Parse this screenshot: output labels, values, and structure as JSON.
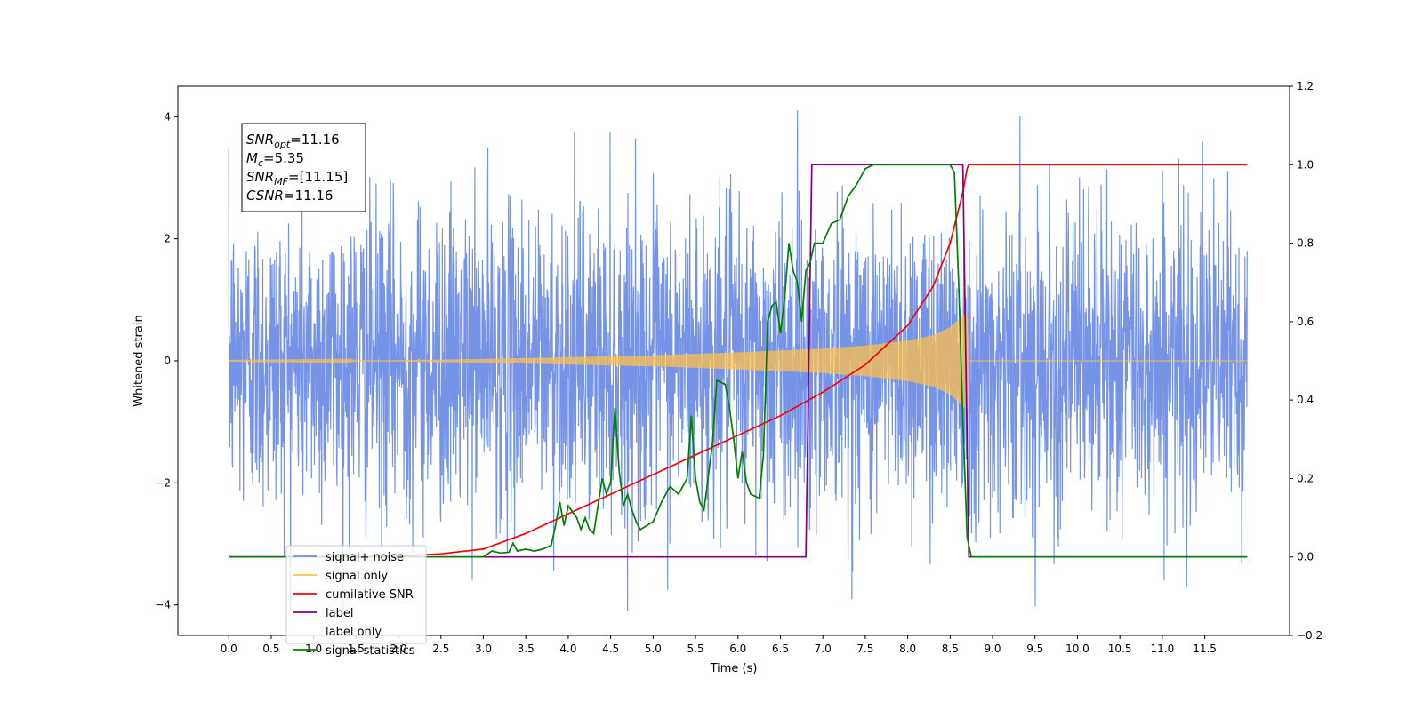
{
  "chart_data": {
    "type": "line",
    "title": "",
    "xlabel": "Time (s)",
    "ylabel": "Whitened strain",
    "ylabel_right": "",
    "xlim": [
      -0.6,
      12.5
    ],
    "ylim": [
      -4.5,
      4.5
    ],
    "ylim_right": [
      -0.2,
      1.2
    ],
    "x_ticks": [
      "0.0",
      "0.5",
      "1.0",
      "1.5",
      "2.0",
      "2.5",
      "3.0",
      "3.5",
      "4.0",
      "4.5",
      "5.0",
      "5.5",
      "6.0",
      "6.5",
      "7.0",
      "7.5",
      "8.0",
      "8.5",
      "9.0",
      "9.5",
      "10.0",
      "10.5",
      "11.0",
      "11.5"
    ],
    "y_ticks": [
      "−4",
      "−2",
      "0",
      "2",
      "4"
    ],
    "y_ticks_right": [
      "−0.2",
      "0.0",
      "0.2",
      "0.4",
      "0.6",
      "0.8",
      "1.0",
      "1.2"
    ],
    "grid": false,
    "legend_position": "lower-left",
    "annotation": {
      "lines": [
        {
          "base": "SNR",
          "sub": "opt",
          "rest": "=11.16"
        },
        {
          "base": "M",
          "sub": "c",
          "rest": "=5.35"
        },
        {
          "base": "SNR",
          "sub": "MF",
          "rest": "=[11.15]"
        },
        {
          "base": "CSNR",
          "sub": "",
          "rest": "=11.16"
        }
      ]
    },
    "series": [
      {
        "name": "signal+ noise",
        "axis": "left",
        "color": "#6f8ee6",
        "description_values": {
          "x_range": [
            0.0,
            12.0
          ],
          "std": 1.25,
          "range": [
            -4.1,
            4.1
          ]
        }
      },
      {
        "name": "signal only",
        "axis": "left",
        "color": "#ffc04d",
        "envelope_points": [
          [
            0.0,
            0.003
          ],
          [
            2.0,
            0.01
          ],
          [
            3.0,
            0.03
          ],
          [
            4.0,
            0.06
          ],
          [
            5.0,
            0.09
          ],
          [
            6.0,
            0.14
          ],
          [
            7.0,
            0.2
          ],
          [
            7.5,
            0.25
          ],
          [
            8.0,
            0.33
          ],
          [
            8.3,
            0.42
          ],
          [
            8.5,
            0.55
          ],
          [
            8.7,
            0.8
          ],
          [
            8.72,
            0.0
          ],
          [
            12.0,
            0.0
          ]
        ]
      },
      {
        "name": "cumilative SNR",
        "axis": "right",
        "color": "#ff0000",
        "points": [
          [
            0.0,
            0.0
          ],
          [
            1.0,
            0.0
          ],
          [
            2.0,
            0.002
          ],
          [
            2.5,
            0.008
          ],
          [
            3.0,
            0.02
          ],
          [
            3.5,
            0.06
          ],
          [
            4.0,
            0.11
          ],
          [
            4.5,
            0.16
          ],
          [
            5.0,
            0.21
          ],
          [
            5.5,
            0.26
          ],
          [
            6.0,
            0.31
          ],
          [
            6.5,
            0.36
          ],
          [
            7.0,
            0.42
          ],
          [
            7.5,
            0.49
          ],
          [
            8.0,
            0.59
          ],
          [
            8.3,
            0.69
          ],
          [
            8.5,
            0.8
          ],
          [
            8.65,
            0.93
          ],
          [
            8.7,
            0.99
          ],
          [
            8.72,
            1.0
          ],
          [
            12.0,
            1.0
          ]
        ]
      },
      {
        "name": "label",
        "axis": "right",
        "color": "#800080",
        "points": [
          [
            0.0,
            0.0
          ],
          [
            6.8,
            0.0
          ],
          [
            6.87,
            1.0
          ],
          [
            8.65,
            1.0
          ],
          [
            8.72,
            0.0
          ],
          [
            12.0,
            0.0
          ]
        ]
      },
      {
        "name": "label only",
        "axis": "right",
        "color": "#e6e6e6",
        "points": []
      },
      {
        "name": "signal statistics",
        "axis": "right",
        "color": "#008000",
        "points": [
          [
            0.0,
            0.0
          ],
          [
            3.0,
            0.0
          ],
          [
            3.1,
            0.015
          ],
          [
            3.2,
            0.01
          ],
          [
            3.3,
            0.012
          ],
          [
            3.35,
            0.035
          ],
          [
            3.4,
            0.015
          ],
          [
            3.5,
            0.02
          ],
          [
            3.6,
            0.015
          ],
          [
            3.7,
            0.02
          ],
          [
            3.8,
            0.03
          ],
          [
            3.85,
            0.08
          ],
          [
            3.9,
            0.14
          ],
          [
            3.95,
            0.08
          ],
          [
            4.0,
            0.13
          ],
          [
            4.1,
            0.1
          ],
          [
            4.15,
            0.07
          ],
          [
            4.2,
            0.1
          ],
          [
            4.25,
            0.07
          ],
          [
            4.3,
            0.06
          ],
          [
            4.4,
            0.2
          ],
          [
            4.45,
            0.16
          ],
          [
            4.5,
            0.19
          ],
          [
            4.55,
            0.38
          ],
          [
            4.6,
            0.22
          ],
          [
            4.65,
            0.13
          ],
          [
            4.7,
            0.16
          ],
          [
            4.75,
            0.12
          ],
          [
            4.8,
            0.09
          ],
          [
            4.85,
            0.07
          ],
          [
            5.0,
            0.09
          ],
          [
            5.1,
            0.14
          ],
          [
            5.2,
            0.18
          ],
          [
            5.3,
            0.16
          ],
          [
            5.4,
            0.2
          ],
          [
            5.45,
            0.36
          ],
          [
            5.5,
            0.2
          ],
          [
            5.55,
            0.14
          ],
          [
            5.6,
            0.12
          ],
          [
            5.7,
            0.29
          ],
          [
            5.75,
            0.45
          ],
          [
            5.85,
            0.44
          ],
          [
            5.9,
            0.38
          ],
          [
            5.95,
            0.3
          ],
          [
            6.0,
            0.2
          ],
          [
            6.05,
            0.27
          ],
          [
            6.1,
            0.19
          ],
          [
            6.15,
            0.16
          ],
          [
            6.25,
            0.15
          ],
          [
            6.3,
            0.26
          ],
          [
            6.35,
            0.6
          ],
          [
            6.4,
            0.64
          ],
          [
            6.45,
            0.65
          ],
          [
            6.5,
            0.57
          ],
          [
            6.55,
            0.66
          ],
          [
            6.6,
            0.8
          ],
          [
            6.65,
            0.73
          ],
          [
            6.7,
            0.7
          ],
          [
            6.75,
            0.6
          ],
          [
            6.8,
            0.73
          ],
          [
            6.85,
            0.75
          ],
          [
            6.9,
            0.8
          ],
          [
            7.0,
            0.8
          ],
          [
            7.1,
            0.85
          ],
          [
            7.2,
            0.86
          ],
          [
            7.3,
            0.92
          ],
          [
            7.4,
            0.95
          ],
          [
            7.5,
            0.99
          ],
          [
            7.6,
            1.0
          ],
          [
            8.5,
            1.0
          ],
          [
            8.55,
            0.98
          ],
          [
            8.6,
            0.7
          ],
          [
            8.65,
            0.35
          ],
          [
            8.7,
            0.05
          ],
          [
            8.75,
            0.0
          ],
          [
            12.0,
            0.0
          ]
        ]
      }
    ]
  }
}
